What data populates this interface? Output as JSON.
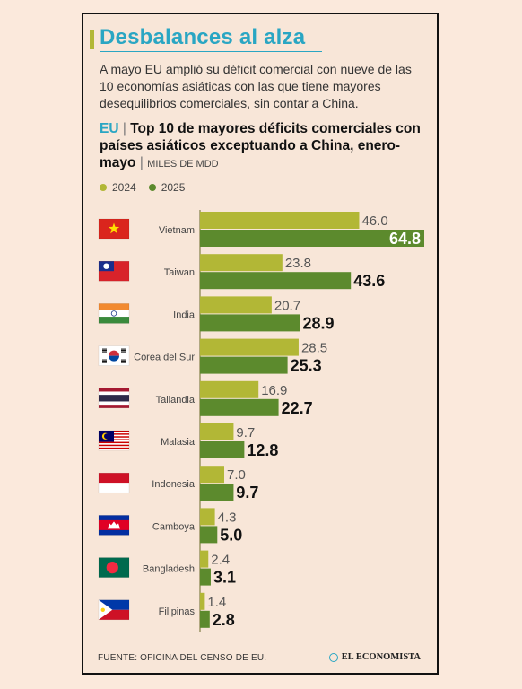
{
  "header": {
    "title": "Desbalances al alza",
    "subtitle": "A mayo EU amplió su déficit comercial con nueve de las 10 economías asiáticas con las que tiene mayores desequilibrios comerciales, sin contar a China."
  },
  "chart_header": {
    "prefix": "EU",
    "separator": "|",
    "title": "Top 10 de mayores déficits comerciales con países asiáticos exceptuando a China, enero-mayo",
    "unit": "MILES DE MDD"
  },
  "colors": {
    "series_2024": "#b2b736",
    "series_2025": "#5c8a2d",
    "accent": "#2aa6c3"
  },
  "chart_data": {
    "type": "bar",
    "orientation": "horizontal",
    "categories": [
      "Vietnam",
      "Taiwan",
      "India",
      "Corea del Sur",
      "Tailandia",
      "Malasia",
      "Indonesia",
      "Camboya",
      "Bangladesh",
      "Filipinas"
    ],
    "series": [
      {
        "name": "2024",
        "values": [
          46.0,
          23.8,
          20.7,
          28.5,
          16.9,
          9.7,
          7.0,
          4.3,
          2.4,
          1.4
        ]
      },
      {
        "name": "2025",
        "values": [
          64.8,
          43.6,
          28.9,
          25.3,
          22.7,
          12.8,
          9.7,
          5.0,
          3.1,
          2.8
        ]
      }
    ],
    "labels_2024": [
      "46.0",
      "23.8",
      "20.7",
      "28.5",
      "16.9",
      "9.7",
      "7.0",
      "4.3",
      "2.4",
      "1.4"
    ],
    "labels_2025": [
      "64.8",
      "43.6",
      "28.9",
      "25.3",
      "22.7",
      "12.8",
      "9.7",
      "5.0",
      "3.1",
      "2.8"
    ],
    "flags": [
      "vietnam-flag",
      "taiwan-flag",
      "india-flag",
      "south-korea-flag",
      "thailand-flag",
      "malaysia-flag",
      "indonesia-flag",
      "cambodia-flag",
      "bangladesh-flag",
      "philippines-flag"
    ],
    "legend_placement": "top-left",
    "grid": false
  },
  "footer": {
    "source": "FUENTE: OFICINA DEL CENSO DE EU.",
    "brand": "EL ECONOMISTA"
  }
}
